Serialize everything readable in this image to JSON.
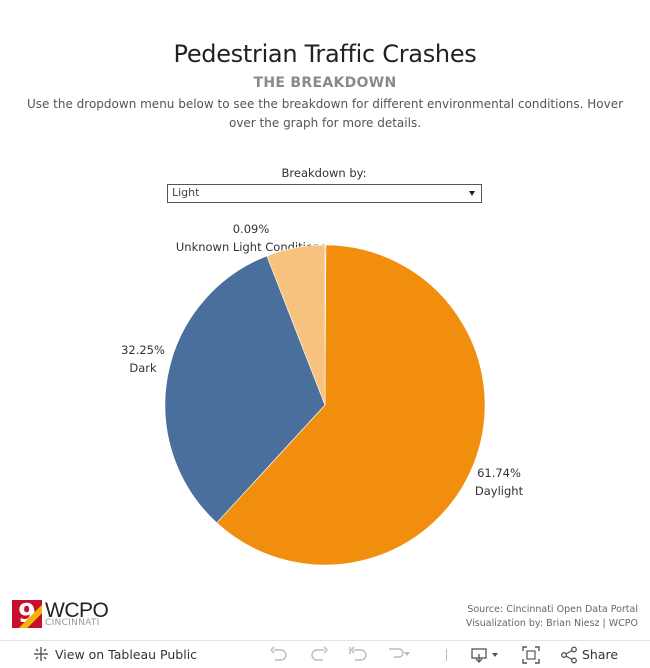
{
  "title": "Pedestrian Traffic Crashes",
  "subtitle": "THE BREAKDOWN",
  "description": "Use the dropdown menu below to see the breakdown for different environmental conditions. Hover over the graph for more details.",
  "filter": {
    "label": "Breakdown by:",
    "selected": "Light"
  },
  "chart_data": {
    "type": "pie",
    "slices": [
      {
        "label": "Unknown Light Conditions",
        "percent_label": "0.09%",
        "value": 0.09,
        "color": "#76b7b2"
      },
      {
        "label": "Daylight",
        "percent_label": "61.74%",
        "value": 61.74,
        "color": "#f28e0e"
      },
      {
        "label": "Dark",
        "percent_label": "32.25%",
        "value": 32.25,
        "color": "#4a6f9c"
      },
      {
        "label": "",
        "percent_label": "",
        "value": 5.92,
        "color": "#f6c27d"
      }
    ]
  },
  "branding": {
    "logo_mark": "9",
    "logo_name": "WCPO",
    "logo_city": "CINCINNATI"
  },
  "source": {
    "line1": "Source: Cincinnati Open Data Portal",
    "line2": "Visualization by: Brian Niesz | WCPO"
  },
  "toolbar": {
    "view_label": "View on Tableau Public",
    "share_label": "Share"
  }
}
